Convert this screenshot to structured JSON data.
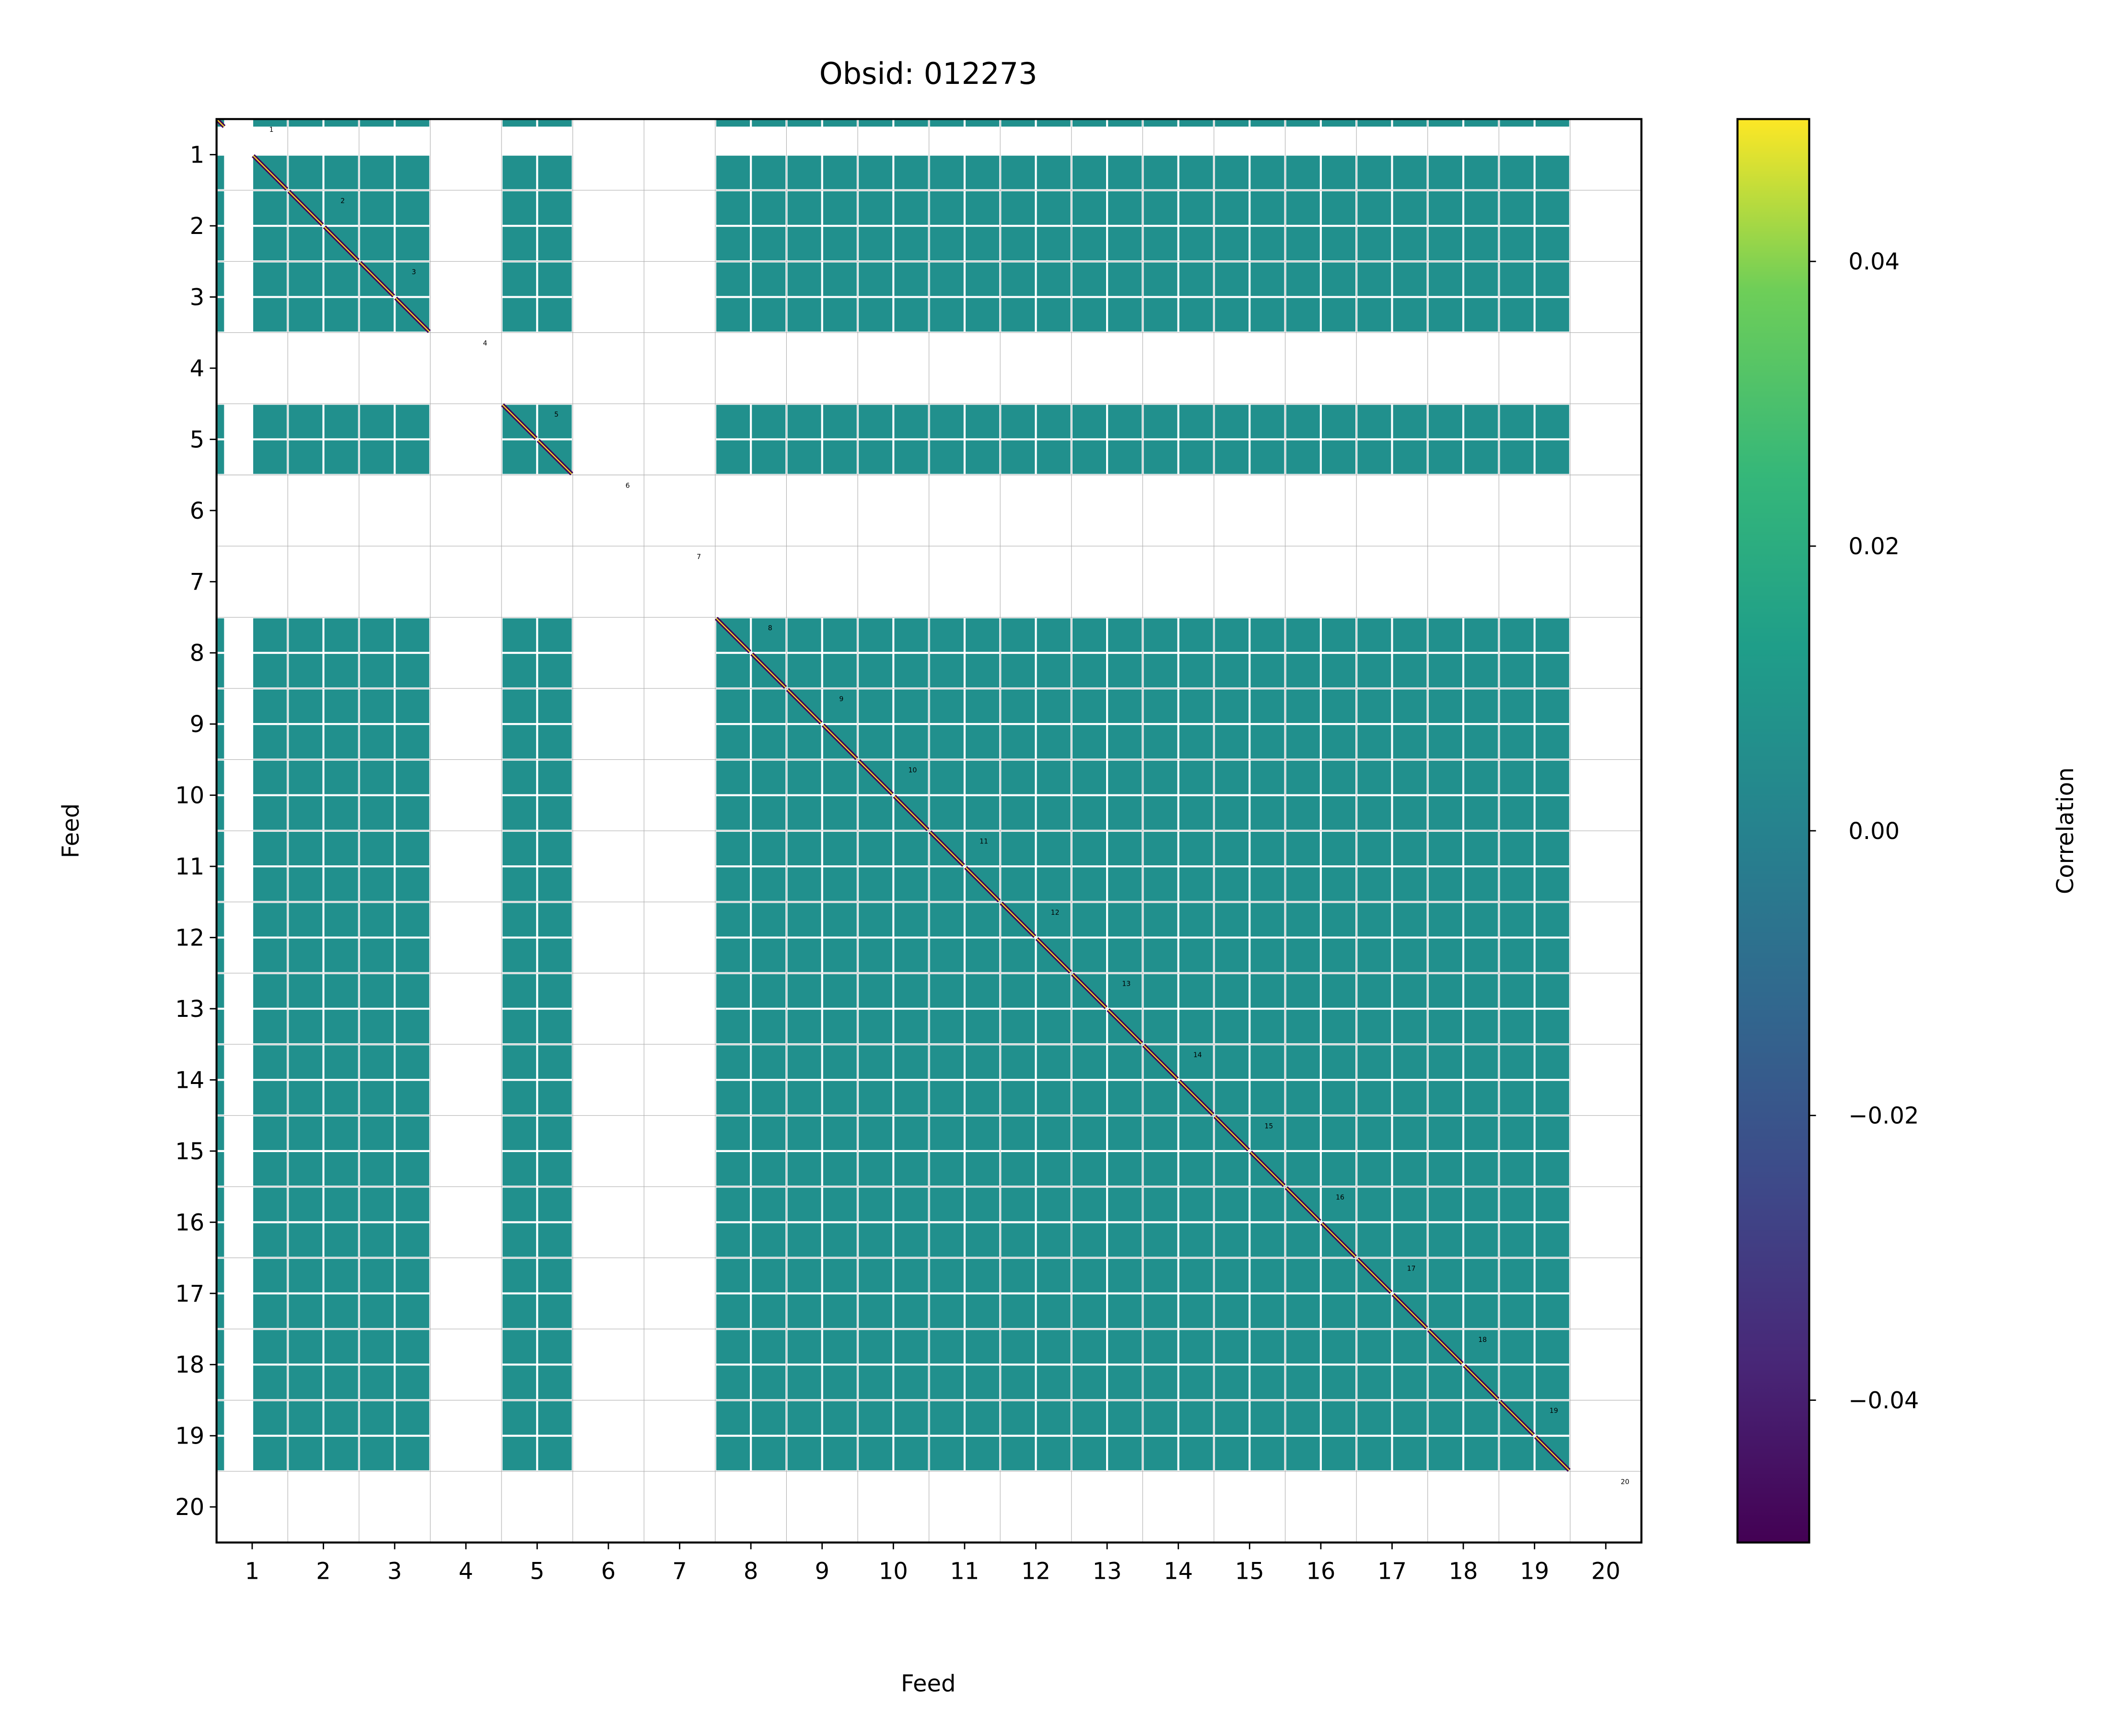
{
  "chart_data": {
    "type": "heatmap",
    "title": "Obsid: 012273",
    "xlabel": "Feed",
    "ylabel": "Feed",
    "xticks": [
      "1",
      "2",
      "3",
      "4",
      "5",
      "6",
      "7",
      "8",
      "9",
      "10",
      "11",
      "12",
      "13",
      "14",
      "15",
      "16",
      "17",
      "18",
      "19",
      "20"
    ],
    "yticks": [
      "1",
      "2",
      "3",
      "4",
      "5",
      "6",
      "7",
      "8",
      "9",
      "10",
      "11",
      "12",
      "13",
      "14",
      "15",
      "16",
      "17",
      "18",
      "19",
      "20"
    ],
    "xlim": [
      0.5,
      20.5
    ],
    "ylim": [
      20.5,
      0.5
    ],
    "grid": true,
    "sub_blocks_per_feed": 2,
    "present_ranges": [
      [
        0.5,
        0.62
      ],
      [
        1.0,
        3.5
      ],
      [
        4.5,
        5.5
      ],
      [
        7.5,
        19.5
      ]
    ],
    "masked_feeds": [
      4,
      6,
      7,
      20
    ],
    "offdiagonal_value": 0.0,
    "diagonal_value": 0.05,
    "diagonal_labels": [
      "1",
      "2",
      "3",
      "4",
      "5",
      "6",
      "7",
      "8",
      "9",
      "10",
      "11",
      "12",
      "13",
      "14",
      "15",
      "16",
      "17",
      "18",
      "19",
      "20"
    ],
    "colorbar": {
      "label": "Correlation",
      "colormap": "viridis",
      "range": [
        -0.05,
        0.05
      ],
      "ticks": [
        0.04,
        0.02,
        0.0,
        -0.02,
        -0.04
      ],
      "tick_labels": [
        "0.04",
        "0.02",
        "0.00",
        "−0.02",
        "−0.04"
      ]
    }
  },
  "colors": {
    "zero": "#21908d",
    "diag_high": "#fde725",
    "diag_low": "#440154",
    "grid": "#b0b0b0"
  }
}
